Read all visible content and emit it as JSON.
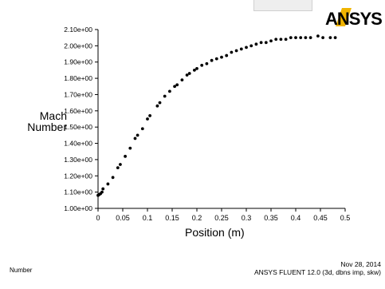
{
  "logo": {
    "text": "ANSYS",
    "colors": {
      "mark": "#000000",
      "accent": "#f0b400"
    }
  },
  "footer": {
    "left": "Number",
    "date": "Nov 28, 2014",
    "software": "ANSYS FLUENT 12.0 (3d, dbns imp, skw)"
  },
  "chart_data": {
    "type": "scatter",
    "title": "",
    "xlabel": "Position (m)",
    "ylabel": [
      "Mach",
      "Number"
    ],
    "xlim": [
      0,
      0.5
    ],
    "ylim": [
      1.0,
      2.1
    ],
    "xticks": [
      "0",
      "0.05",
      "0.1",
      "0.15",
      "0.2",
      "0.25",
      "0.3",
      "0.35",
      "0.4",
      "0.45",
      "0.5"
    ],
    "xtick_values": [
      0,
      0.05,
      0.1,
      0.15,
      0.2,
      0.25,
      0.3,
      0.35,
      0.4,
      0.45,
      0.5
    ],
    "yticks": [
      "1.00e+00",
      "1.10e+00",
      "1.20e+00",
      "1.30e+00",
      "1.40e+00",
      "1.50e+00",
      "1.60e+00",
      "1.70e+00",
      "1.80e+00",
      "1.90e+00",
      "2.00e+00",
      "2.10e+00"
    ],
    "ytick_values": [
      1.0,
      1.1,
      1.2,
      1.3,
      1.4,
      1.5,
      1.6,
      1.7,
      1.8,
      1.9,
      2.0,
      2.1
    ],
    "marker_color": "#000000",
    "points": [
      [
        0.0,
        1.08
      ],
      [
        0.002,
        1.085
      ],
      [
        0.005,
        1.09
      ],
      [
        0.008,
        1.1
      ],
      [
        0.01,
        1.12
      ],
      [
        0.02,
        1.15
      ],
      [
        0.03,
        1.19
      ],
      [
        0.04,
        1.25
      ],
      [
        0.045,
        1.27
      ],
      [
        0.055,
        1.32
      ],
      [
        0.065,
        1.37
      ],
      [
        0.075,
        1.43
      ],
      [
        0.08,
        1.45
      ],
      [
        0.09,
        1.49
      ],
      [
        0.1,
        1.55
      ],
      [
        0.105,
        1.57
      ],
      [
        0.12,
        1.63
      ],
      [
        0.125,
        1.65
      ],
      [
        0.135,
        1.69
      ],
      [
        0.145,
        1.72
      ],
      [
        0.155,
        1.75
      ],
      [
        0.16,
        1.76
      ],
      [
        0.17,
        1.79
      ],
      [
        0.18,
        1.82
      ],
      [
        0.185,
        1.83
      ],
      [
        0.195,
        1.85
      ],
      [
        0.2,
        1.86
      ],
      [
        0.21,
        1.88
      ],
      [
        0.22,
        1.89
      ],
      [
        0.23,
        1.91
      ],
      [
        0.24,
        1.92
      ],
      [
        0.25,
        1.93
      ],
      [
        0.26,
        1.94
      ],
      [
        0.27,
        1.96
      ],
      [
        0.28,
        1.97
      ],
      [
        0.29,
        1.98
      ],
      [
        0.3,
        1.99
      ],
      [
        0.31,
        2.0
      ],
      [
        0.32,
        2.01
      ],
      [
        0.33,
        2.02
      ],
      [
        0.34,
        2.02
      ],
      [
        0.35,
        2.03
      ],
      [
        0.36,
        2.04
      ],
      [
        0.37,
        2.04
      ],
      [
        0.38,
        2.04
      ],
      [
        0.39,
        2.05
      ],
      [
        0.4,
        2.05
      ],
      [
        0.41,
        2.05
      ],
      [
        0.42,
        2.05
      ],
      [
        0.43,
        2.05
      ],
      [
        0.445,
        2.06
      ],
      [
        0.455,
        2.05
      ],
      [
        0.47,
        2.05
      ],
      [
        0.48,
        2.05
      ]
    ]
  }
}
